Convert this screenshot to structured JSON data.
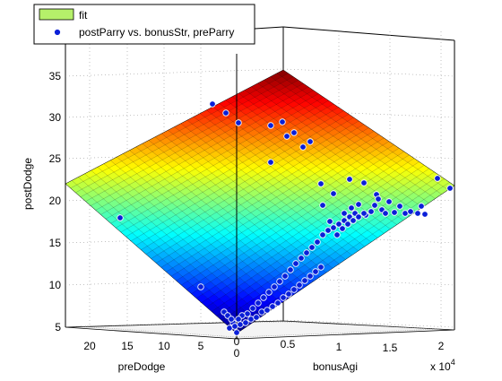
{
  "chart_data": {
    "type": "scatter",
    "surface": "fit",
    "zlabel": "postDodge",
    "xlabel": "preDodge",
    "ylabel": "bonusAgi",
    "y_multiplier": "x 10",
    "y_multiplier_exp": "4",
    "zlim": [
      5,
      37
    ],
    "z_ticks": [
      "5",
      "10",
      "15",
      "20",
      "25",
      "30",
      "35"
    ],
    "x_ticks": [
      "20",
      "15",
      "10",
      "5",
      "0"
    ],
    "y_ticks": [
      "0",
      "0.5",
      "1",
      "1.5",
      "2"
    ],
    "legend": {
      "position": "top-left",
      "entries": [
        "fit",
        "postParry vs. bonusStr, preParry"
      ],
      "fit_color": "#b5f06a",
      "marker_color": "#0a1fd8"
    },
    "colormap": "jet",
    "points": [
      [
        237,
        116
      ],
      [
        252,
        126
      ],
      [
        266,
        137
      ],
      [
        302,
        140
      ],
      [
        315,
        136
      ],
      [
        328,
        148
      ],
      [
        320,
        152
      ],
      [
        338,
        164
      ],
      [
        346,
        158
      ],
      [
        302,
        181
      ],
      [
        358,
        205
      ],
      [
        372,
        216
      ],
      [
        390,
        200
      ],
      [
        406,
        204
      ],
      [
        420,
        217
      ],
      [
        434,
        225
      ],
      [
        470,
        230
      ],
      [
        488,
        199
      ],
      [
        502,
        210
      ],
      [
        134,
        243
      ],
      [
        360,
        229
      ],
      [
        368,
        247
      ],
      [
        384,
        238
      ],
      [
        392,
        232
      ],
      [
        400,
        228
      ],
      [
        408,
        240
      ],
      [
        414,
        236
      ],
      [
        418,
        229
      ],
      [
        422,
        222
      ],
      [
        426,
        234
      ],
      [
        430,
        238
      ],
      [
        440,
        237
      ],
      [
        446,
        230
      ],
      [
        452,
        238
      ],
      [
        458,
        236
      ],
      [
        466,
        238
      ],
      [
        474,
        239
      ],
      [
        360,
        262
      ],
      [
        366,
        257
      ],
      [
        372,
        254
      ],
      [
        378,
        250
      ],
      [
        384,
        246
      ],
      [
        390,
        242
      ],
      [
        396,
        238
      ],
      [
        354,
        270
      ],
      [
        348,
        276
      ],
      [
        342,
        282
      ],
      [
        336,
        288
      ],
      [
        330,
        294
      ],
      [
        324,
        301
      ],
      [
        318,
        308
      ],
      [
        312,
        314
      ],
      [
        306,
        320
      ],
      [
        300,
        326
      ],
      [
        294,
        332
      ],
      [
        288,
        338
      ],
      [
        282,
        344
      ],
      [
        276,
        350
      ],
      [
        270,
        352
      ],
      [
        266,
        356
      ],
      [
        260,
        360
      ],
      [
        256,
        366
      ],
      [
        262,
        364
      ],
      [
        268,
        362
      ],
      [
        274,
        360
      ],
      [
        280,
        356
      ],
      [
        286,
        354
      ],
      [
        292,
        348
      ],
      [
        298,
        346
      ],
      [
        304,
        342
      ],
      [
        310,
        338
      ],
      [
        316,
        332
      ],
      [
        322,
        328
      ],
      [
        328,
        323
      ],
      [
        334,
        318
      ],
      [
        340,
        313
      ],
      [
        346,
        308
      ],
      [
        352,
        303
      ],
      [
        358,
        298
      ],
      [
        250,
        348
      ],
      [
        254,
        352
      ],
      [
        258,
        356
      ],
      [
        224,
        320
      ],
      [
        264,
        371
      ],
      [
        376,
        262
      ],
      [
        382,
        255
      ],
      [
        388,
        250
      ],
      [
        394,
        246
      ],
      [
        400,
        242
      ],
      [
        406,
        238
      ]
    ]
  }
}
